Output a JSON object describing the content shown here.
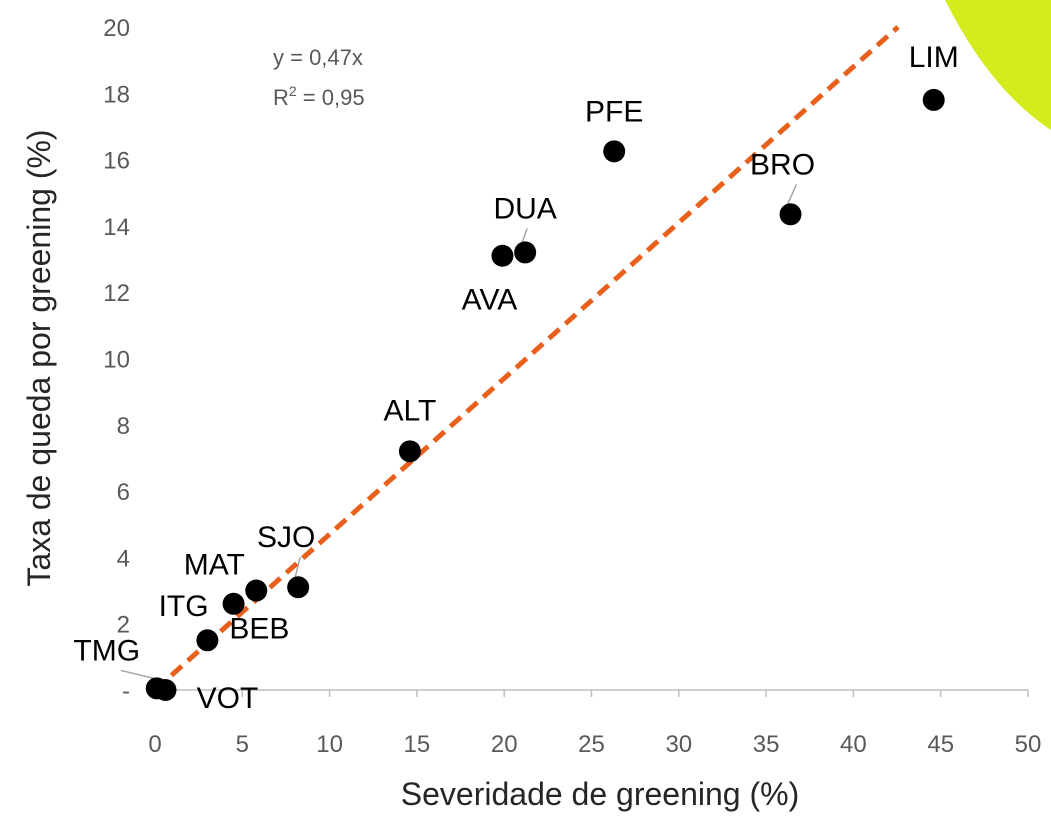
{
  "chart_data": {
    "type": "scatter",
    "xlabel": "Severidade de greening (%)",
    "ylabel": "Taxa de queda por greening (%)",
    "xlim": [
      0,
      50
    ],
    "ylim": [
      0,
      20
    ],
    "x_ticks": [
      "0",
      "5",
      "10",
      "15",
      "20",
      "25",
      "30",
      "35",
      "40",
      "45",
      "50"
    ],
    "y_ticks": [
      "-",
      "2",
      "4",
      "6",
      "8",
      "10",
      "12",
      "14",
      "16",
      "18",
      "20"
    ],
    "grid": false,
    "trendline": {
      "type": "linear-through-origin",
      "slope": 0.47,
      "equation": "y = 0,47x",
      "r2_label": "R",
      "r2_sup": "2",
      "r2_value": " = 0,95",
      "color": "#E8601C",
      "dashed": true
    },
    "points": [
      {
        "label": "TMG",
        "x": 0.1,
        "y": 0.05
      },
      {
        "label": "VOT",
        "x": 0.6,
        "y": 0.0
      },
      {
        "label": "BEB",
        "x": 3.0,
        "y": 1.5
      },
      {
        "label": "ITG",
        "x": 4.5,
        "y": 2.6
      },
      {
        "label": "MAT",
        "x": 5.8,
        "y": 3.0
      },
      {
        "label": "SJO",
        "x": 8.2,
        "y": 3.1
      },
      {
        "label": "ALT",
        "x": 14.6,
        "y": 7.2
      },
      {
        "label": "AVA",
        "x": 19.9,
        "y": 13.1
      },
      {
        "label": "DUA",
        "x": 21.2,
        "y": 13.2
      },
      {
        "label": "PFE",
        "x": 26.3,
        "y": 16.25
      },
      {
        "label": "BRO",
        "x": 36.4,
        "y": 14.35
      },
      {
        "label": "LIM",
        "x": 44.6,
        "y": 17.8
      }
    ],
    "marker_color": "#000000",
    "accent_shape_color": "#D4EB1E"
  }
}
